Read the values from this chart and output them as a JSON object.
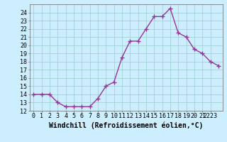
{
  "hours": [
    0,
    1,
    2,
    3,
    4,
    5,
    6,
    7,
    8,
    9,
    10,
    11,
    12,
    13,
    14,
    15,
    16,
    17,
    18,
    19,
    20,
    21,
    22,
    23
  ],
  "values": [
    14.0,
    14.0,
    14.0,
    13.0,
    12.5,
    12.5,
    12.5,
    12.5,
    13.5,
    15.0,
    15.5,
    18.5,
    20.5,
    20.5,
    22.0,
    23.5,
    23.5,
    24.5,
    21.5,
    21.0,
    19.5,
    19.0,
    18.0,
    17.5
  ],
  "line_color": "#993399",
  "marker": "+",
  "bg_color": "#cceeff",
  "grid_color": "#99cccc",
  "xlabel": "Windchill (Refroidissement éolien,°C)",
  "xlim": [
    -0.5,
    23.5
  ],
  "ylim": [
    12,
    25
  ],
  "yticks": [
    12,
    13,
    14,
    15,
    16,
    17,
    18,
    19,
    20,
    21,
    22,
    23,
    24
  ],
  "xtick_positions": [
    0,
    1,
    2,
    3,
    4,
    5,
    6,
    7,
    8,
    9,
    10,
    11,
    12,
    13,
    14,
    15,
    16,
    17,
    18,
    19,
    20,
    21,
    22
  ],
  "xtick_labels": [
    "0",
    "1",
    "2",
    "3",
    "4",
    "5",
    "6",
    "7",
    "8",
    "9",
    "10",
    "11",
    "12",
    "13",
    "14",
    "15",
    "16",
    "17",
    "18",
    "19",
    "20",
    "21",
    "2223"
  ],
  "xlabel_fontsize": 7,
  "tick_fontsize": 6,
  "line_width": 1.0,
  "marker_size": 4,
  "marker_edge_width": 1.0
}
